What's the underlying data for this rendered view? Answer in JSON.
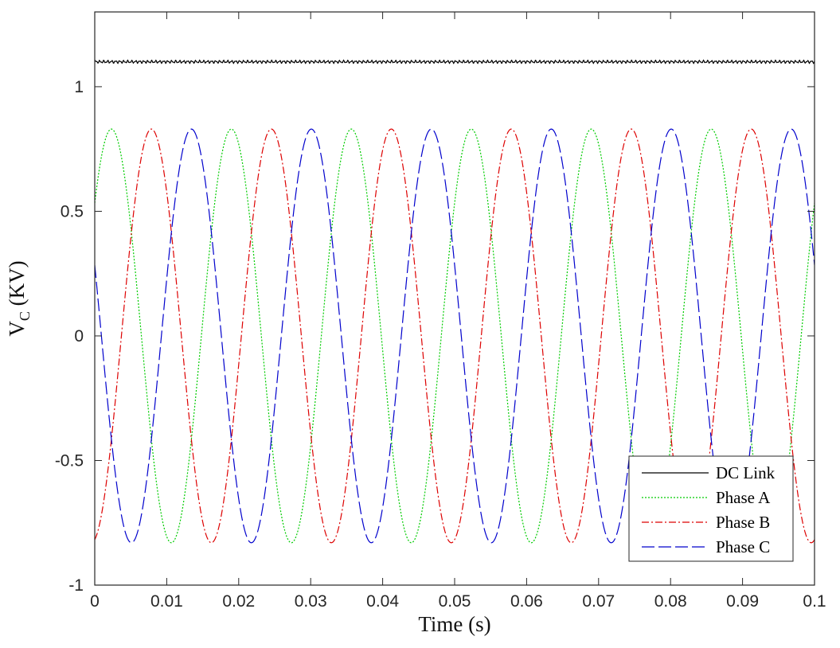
{
  "chart_data": {
    "type": "line",
    "title": "",
    "xlabel": "Time (s)",
    "ylabel": {
      "main": "V",
      "subscript": "C",
      "suffix": " (KV)"
    },
    "xlim": [
      0,
      0.1
    ],
    "ylim": [
      -1,
      1.3
    ],
    "x_ticks": [
      "0",
      "0.01",
      "0.02",
      "0.03",
      "0.04",
      "0.05",
      "0.06",
      "0.07",
      "0.08",
      "0.09",
      "0.1"
    ],
    "y_ticks": [
      "-1",
      "-0.5",
      "0",
      "0.5",
      "1"
    ],
    "x_tick_values": [
      0,
      0.01,
      0.02,
      0.03,
      0.04,
      0.05,
      0.06,
      0.07,
      0.08,
      0.09,
      0.1
    ],
    "y_tick_values": [
      -1,
      -0.5,
      0,
      0.5,
      1
    ],
    "grid": false,
    "legend_position": "bottom-right",
    "series": [
      {
        "name": "DC Link",
        "color": "#000000",
        "dash": "solid",
        "kind": "dc",
        "level": 1.1,
        "ripple": 0.004
      },
      {
        "name": "Phase A",
        "color": "#00cc00",
        "dash": "dotted",
        "kind": "sine",
        "amplitude": 0.83,
        "frequency_hz": 60,
        "phase_deg": 40
      },
      {
        "name": "Phase B",
        "color": "#dd0000",
        "dash": "dash-dot",
        "kind": "sine",
        "amplitude": 0.83,
        "frequency_hz": 60,
        "phase_deg": -80
      },
      {
        "name": "Phase C",
        "color": "#0000cc",
        "dash": "dashed",
        "kind": "sine",
        "amplitude": 0.83,
        "frequency_hz": 60,
        "phase_deg": 160
      }
    ]
  }
}
